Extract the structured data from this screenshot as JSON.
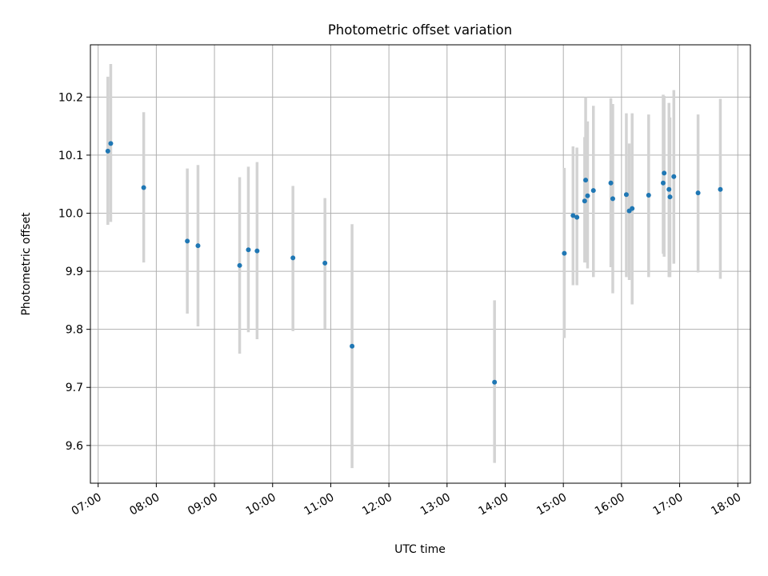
{
  "chart_data": {
    "type": "scatter",
    "title": "Photometric offset variation",
    "xlabel": "UTC time",
    "ylabel": "Photometric offset",
    "x_ticks": [
      "07:00",
      "08:00",
      "09:00",
      "10:00",
      "11:00",
      "12:00",
      "13:00",
      "14:00",
      "15:00",
      "16:00",
      "17:00",
      "18:00"
    ],
    "y_ticks": [
      "9.6",
      "9.7",
      "9.8",
      "9.9",
      "10.0",
      "10.1",
      "10.2"
    ],
    "xlim": [
      "06:52",
      "18:13"
    ],
    "ylim": [
      9.535,
      10.29
    ],
    "grid": true,
    "error_bar_color": "#d3d3d3",
    "point_color": "#1f77b4",
    "points": [
      {
        "x": "07:10",
        "y": 10.107,
        "ylo": 9.98,
        "yhi": 10.235
      },
      {
        "x": "07:13",
        "y": 10.12,
        "ylo": 9.985,
        "yhi": 10.257
      },
      {
        "x": "07:47",
        "y": 10.044,
        "ylo": 9.915,
        "yhi": 10.174
      },
      {
        "x": "08:32",
        "y": 9.952,
        "ylo": 9.827,
        "yhi": 10.077
      },
      {
        "x": "08:43",
        "y": 9.944,
        "ylo": 9.805,
        "yhi": 10.083
      },
      {
        "x": "09:26",
        "y": 9.91,
        "ylo": 9.758,
        "yhi": 10.062
      },
      {
        "x": "09:35",
        "y": 9.937,
        "ylo": 9.795,
        "yhi": 10.08
      },
      {
        "x": "09:44",
        "y": 9.935,
        "ylo": 9.783,
        "yhi": 10.088
      },
      {
        "x": "10:21",
        "y": 9.923,
        "ylo": 9.797,
        "yhi": 10.047
      },
      {
        "x": "10:54",
        "y": 9.914,
        "ylo": 9.801,
        "yhi": 10.026
      },
      {
        "x": "11:22",
        "y": 9.771,
        "ylo": 9.561,
        "yhi": 9.981
      },
      {
        "x": "13:49",
        "y": 9.709,
        "ylo": 9.57,
        "yhi": 9.85
      },
      {
        "x": "15:01",
        "y": 9.931,
        "ylo": 9.785,
        "yhi": 10.078
      },
      {
        "x": "15:10",
        "y": 9.996,
        "ylo": 9.876,
        "yhi": 10.115
      },
      {
        "x": "15:14",
        "y": 9.993,
        "ylo": 9.876,
        "yhi": 10.113
      },
      {
        "x": "15:22",
        "y": 10.021,
        "ylo": 9.915,
        "yhi": 10.131
      },
      {
        "x": "15:23",
        "y": 10.057,
        "ylo": 9.915,
        "yhi": 10.2
      },
      {
        "x": "15:25",
        "y": 10.03,
        "ylo": 9.905,
        "yhi": 10.158
      },
      {
        "x": "15:31",
        "y": 10.039,
        "ylo": 9.89,
        "yhi": 10.185
      },
      {
        "x": "15:49",
        "y": 10.052,
        "ylo": 9.907,
        "yhi": 10.198
      },
      {
        "x": "15:51",
        "y": 10.025,
        "ylo": 9.862,
        "yhi": 10.188
      },
      {
        "x": "16:05",
        "y": 10.032,
        "ylo": 9.89,
        "yhi": 10.172
      },
      {
        "x": "16:08",
        "y": 10.004,
        "ylo": 9.885,
        "yhi": 10.12
      },
      {
        "x": "16:11",
        "y": 10.008,
        "ylo": 9.843,
        "yhi": 10.172
      },
      {
        "x": "16:28",
        "y": 10.031,
        "ylo": 9.89,
        "yhi": 10.17
      },
      {
        "x": "16:43",
        "y": 10.052,
        "ylo": 9.93,
        "yhi": 10.204
      },
      {
        "x": "16:44",
        "y": 10.069,
        "ylo": 9.925,
        "yhi": 10.202
      },
      {
        "x": "16:49",
        "y": 10.041,
        "ylo": 9.89,
        "yhi": 10.19
      },
      {
        "x": "16:50",
        "y": 10.028,
        "ylo": 9.89,
        "yhi": 10.165
      },
      {
        "x": "16:54",
        "y": 10.063,
        "ylo": 9.913,
        "yhi": 10.212
      },
      {
        "x": "17:19",
        "y": 10.035,
        "ylo": 9.898,
        "yhi": 10.17
      },
      {
        "x": "17:42",
        "y": 10.041,
        "ylo": 9.887,
        "yhi": 10.197
      }
    ]
  }
}
